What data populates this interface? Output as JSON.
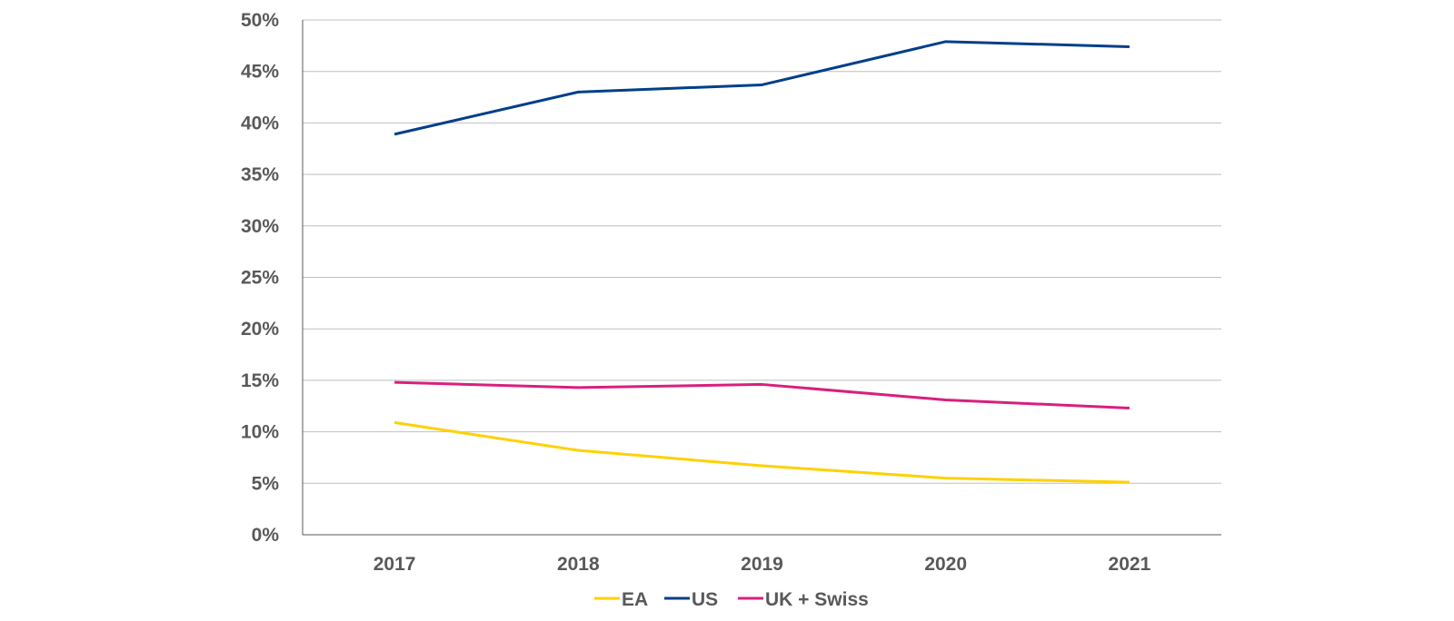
{
  "chart_data": {
    "type": "line",
    "title": "",
    "xlabel": "",
    "ylabel": "",
    "x": [
      "2017",
      "2018",
      "2019",
      "2020",
      "2021"
    ],
    "ylim": [
      0,
      50
    ],
    "yticks": [
      0,
      5,
      10,
      15,
      20,
      25,
      30,
      35,
      40,
      45,
      50
    ],
    "ytick_labels": [
      "0%",
      "5%",
      "10%",
      "15%",
      "20%",
      "25%",
      "30%",
      "35%",
      "40%",
      "45%",
      "50%"
    ],
    "grid": true,
    "legend_position": "bottom",
    "series": [
      {
        "name": "EA",
        "color": "#FFD100",
        "values": [
          10.9,
          8.2,
          6.7,
          5.5,
          5.1
        ]
      },
      {
        "name": "US",
        "color": "#003F8A",
        "values": [
          38.9,
          43.0,
          43.7,
          47.9,
          47.4
        ]
      },
      {
        "name": "UK + Swiss",
        "color": "#D91F7E",
        "values": [
          14.8,
          14.3,
          14.6,
          13.1,
          12.3
        ]
      }
    ]
  }
}
